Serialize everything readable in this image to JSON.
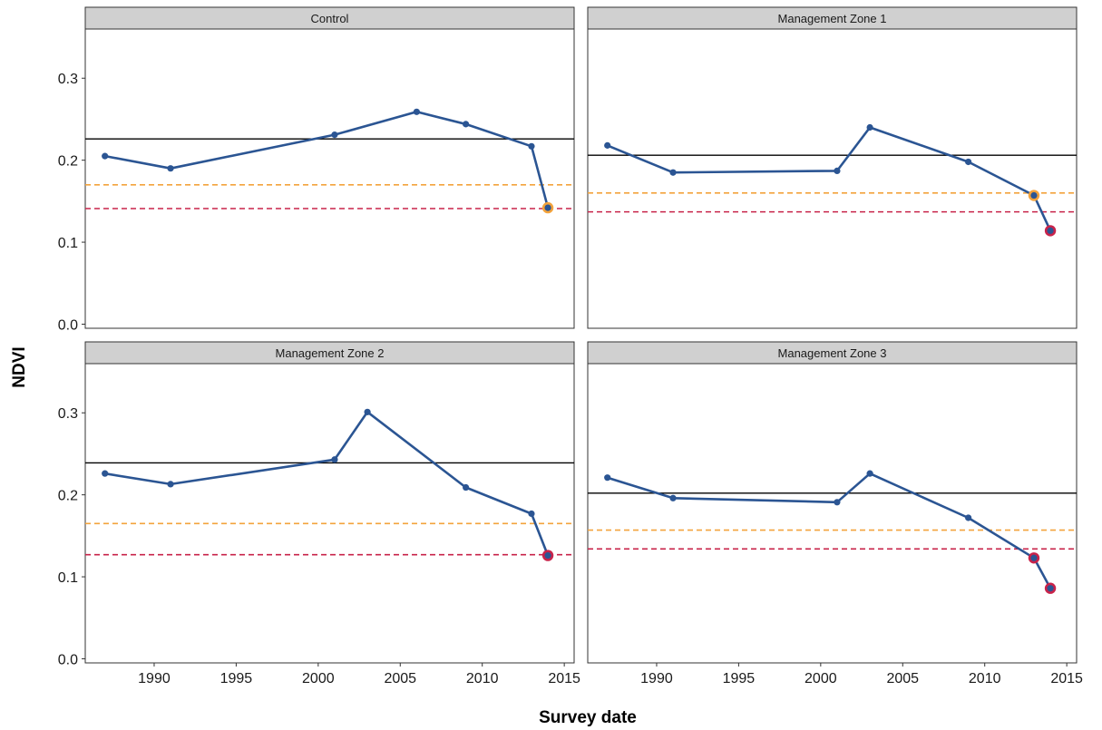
{
  "colors": {
    "series": "#2b5593",
    "mean_line": "#000000",
    "threshold_orange": "#f3a33c",
    "threshold_red": "#c8234a",
    "strip_fill": "#d0d0d0",
    "panel_border": "#333333"
  },
  "chart_data": {
    "type": "line",
    "layout": "facet 2x2",
    "grid": false,
    "xlabel": "Survey date",
    "ylabel": "NDVI",
    "xlim": [
      1985.8,
      2015.6
    ],
    "ylim": [
      -0.005,
      0.36
    ],
    "xticks": [
      1990,
      1995,
      2000,
      2005,
      2010,
      2015
    ],
    "yticks": [
      0.0,
      0.1,
      0.2,
      0.3
    ],
    "ytick_labels": [
      "0.0",
      "0.1",
      "0.2",
      "0.3"
    ],
    "panels": [
      {
        "title": "Control",
        "x": [
          1987,
          1991,
          2001,
          2006,
          2009,
          2013,
          2014
        ],
        "y": [
          0.205,
          0.19,
          0.231,
          0.259,
          0.244,
          0.217,
          0.142
        ],
        "mean_line": 0.226,
        "threshold_orange": 0.17,
        "threshold_red": 0.141,
        "highlights": [
          {
            "x": 2014,
            "y": 0.142,
            "level": "orange"
          }
        ]
      },
      {
        "title": "Management Zone 1",
        "x": [
          1987,
          1991,
          2001,
          2003,
          2009,
          2013,
          2014
        ],
        "y": [
          0.218,
          0.185,
          0.187,
          0.24,
          0.198,
          0.157,
          0.114
        ],
        "mean_line": 0.206,
        "threshold_orange": 0.16,
        "threshold_red": 0.137,
        "highlights": [
          {
            "x": 2013,
            "y": 0.157,
            "level": "orange"
          },
          {
            "x": 2014,
            "y": 0.114,
            "level": "red"
          }
        ]
      },
      {
        "title": "Management Zone 2",
        "x": [
          1987,
          1991,
          2001,
          2003,
          2009,
          2013,
          2014
        ],
        "y": [
          0.226,
          0.213,
          0.243,
          0.301,
          0.209,
          0.177,
          0.126
        ],
        "mean_line": 0.239,
        "threshold_orange": 0.165,
        "threshold_red": 0.127,
        "highlights": [
          {
            "x": 2014,
            "y": 0.126,
            "level": "red"
          }
        ]
      },
      {
        "title": "Management Zone 3",
        "x": [
          1987,
          1991,
          2001,
          2003,
          2009,
          2013,
          2014
        ],
        "y": [
          0.221,
          0.196,
          0.191,
          0.226,
          0.172,
          0.123,
          0.086
        ],
        "mean_line": 0.202,
        "threshold_orange": 0.157,
        "threshold_red": 0.134,
        "highlights": [
          {
            "x": 2013,
            "y": 0.123,
            "level": "red"
          },
          {
            "x": 2014,
            "y": 0.086,
            "level": "red"
          }
        ]
      }
    ]
  }
}
